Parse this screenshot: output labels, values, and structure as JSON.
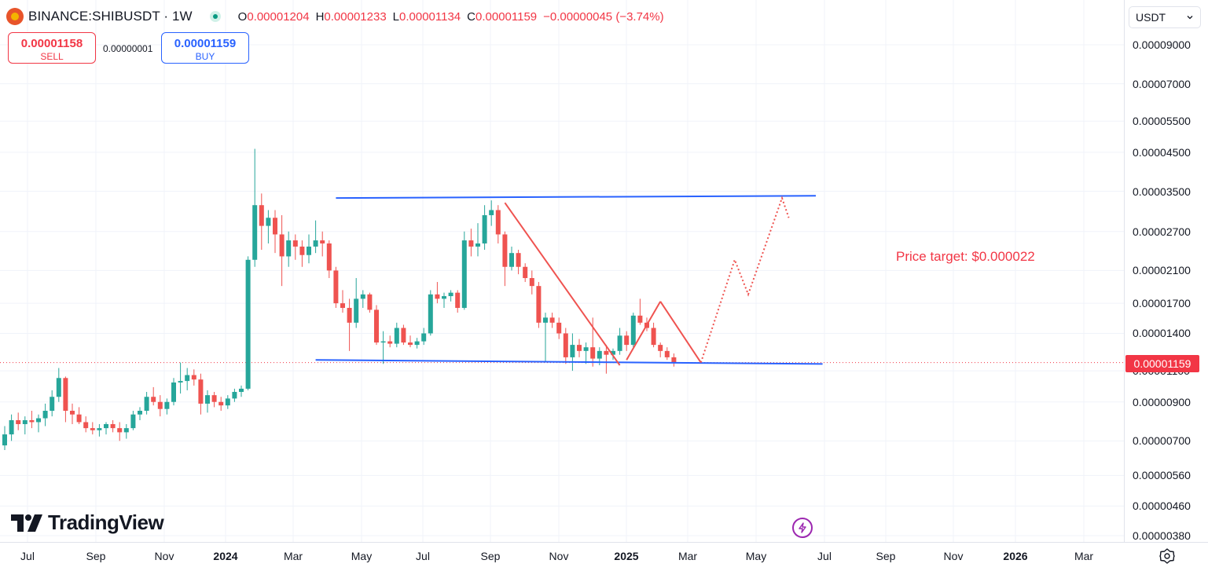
{
  "header": {
    "symbol": "BINANCE:SHIBUSDT · 1W",
    "ohlc": [
      {
        "key": "O",
        "value": "0.00001204"
      },
      {
        "key": "H",
        "value": "0.00001233"
      },
      {
        "key": "L",
        "value": "0.00001134"
      },
      {
        "key": "C",
        "value": "0.00001159"
      }
    ],
    "change": "−0.00000045 (−3.74%)"
  },
  "trade": {
    "sell_price": "0.00001158",
    "sell_label": "SELL",
    "spread": "0.00000001",
    "buy_price": "0.00001159",
    "buy_label": "BUY"
  },
  "price_axis": {
    "currency": "USDT",
    "ticks": [
      "0.00009000",
      "0.00007000",
      "0.00005500",
      "0.00004500",
      "0.00003500",
      "0.00002700",
      "0.00002100",
      "0.00001700",
      "0.00001400",
      "0.00001100",
      "0.00000900",
      "0.00000700",
      "0.00000560",
      "0.00000460",
      "0.00000380"
    ],
    "last_price": "0.00001159"
  },
  "time_axis": {
    "ticks": [
      {
        "label": "Jul",
        "bold": false
      },
      {
        "label": "Sep",
        "bold": false
      },
      {
        "label": "Nov",
        "bold": false
      },
      {
        "label": "2024",
        "bold": true
      },
      {
        "label": "Mar",
        "bold": false
      },
      {
        "label": "May",
        "bold": false
      },
      {
        "label": "Jul",
        "bold": false
      },
      {
        "label": "Sep",
        "bold": false
      },
      {
        "label": "Nov",
        "bold": false
      },
      {
        "label": "2025",
        "bold": true
      },
      {
        "label": "Mar",
        "bold": false
      },
      {
        "label": "May",
        "bold": false
      },
      {
        "label": "Jul",
        "bold": false
      },
      {
        "label": "Sep",
        "bold": false
      },
      {
        "label": "Nov",
        "bold": false
      },
      {
        "label": "2026",
        "bold": true
      },
      {
        "label": "Mar",
        "bold": false
      }
    ]
  },
  "annotation": {
    "text": "Price target: $0.000022"
  },
  "branding": {
    "name": "TradingView"
  },
  "colors": {
    "up": "#26a69a",
    "down": "#ef5350",
    "trendline": "#2962ff",
    "annotation": "#f23645"
  },
  "icons": {
    "settings": "gear-icon",
    "bolt": "lightning-icon",
    "status": "status-dot-icon"
  },
  "chart_data": {
    "type": "candlestick",
    "interval": "1W",
    "scale": "log",
    "ylim": [
      3.6e-06,
      0.00011
    ],
    "candles": [
      {
        "o": 6.8e-06,
        "h": 7.7e-06,
        "l": 6.6e-06,
        "c": 7.3e-06
      },
      {
        "o": 7.3e-06,
        "h": 8.3e-06,
        "l": 7e-06,
        "c": 8e-06
      },
      {
        "o": 8e-06,
        "h": 8.4e-06,
        "l": 7.5e-06,
        "c": 7.8e-06
      },
      {
        "o": 7.8e-06,
        "h": 8.2e-06,
        "l": 7.3e-06,
        "c": 8e-06
      },
      {
        "o": 8e-06,
        "h": 8.5e-06,
        "l": 7.6e-06,
        "c": 7.9e-06
      },
      {
        "o": 7.9e-06,
        "h": 8.3e-06,
        "l": 7.4e-06,
        "c": 8.1e-06
      },
      {
        "o": 8.1e-06,
        "h": 8.9e-06,
        "l": 7.7e-06,
        "c": 8.5e-06
      },
      {
        "o": 8.5e-06,
        "h": 9.7e-06,
        "l": 8.2e-06,
        "c": 9.3e-06
      },
      {
        "o": 9.3e-06,
        "h": 1.12e-05,
        "l": 9e-06,
        "c": 1.05e-05
      },
      {
        "o": 1.05e-05,
        "h": 1.06e-05,
        "l": 7.9e-06,
        "c": 8.5e-06
      },
      {
        "o": 8.5e-06,
        "h": 8.9e-06,
        "l": 7.8e-06,
        "c": 8.3e-06
      },
      {
        "o": 8.3e-06,
        "h": 8.7e-06,
        "l": 7.8e-06,
        "c": 7.9e-06
      },
      {
        "o": 7.9e-06,
        "h": 8.2e-06,
        "l": 7.4e-06,
        "c": 7.6e-06
      },
      {
        "o": 7.6e-06,
        "h": 7.9e-06,
        "l": 7.3e-06,
        "c": 7.5e-06
      },
      {
        "o": 7.5e-06,
        "h": 7.8e-06,
        "l": 7.2e-06,
        "c": 7.6e-06
      },
      {
        "o": 7.6e-06,
        "h": 7.9e-06,
        "l": 7.3e-06,
        "c": 7.8e-06
      },
      {
        "o": 7.8e-06,
        "h": 8e-06,
        "l": 7.4e-06,
        "c": 7.6e-06
      },
      {
        "o": 7.6e-06,
        "h": 7.9e-06,
        "l": 7e-06,
        "c": 7.4e-06
      },
      {
        "o": 7.4e-06,
        "h": 7.8e-06,
        "l": 7.1e-06,
        "c": 7.6e-06
      },
      {
        "o": 7.6e-06,
        "h": 8.5e-06,
        "l": 7.5e-06,
        "c": 8.3e-06
      },
      {
        "o": 8.3e-06,
        "h": 8.7e-06,
        "l": 8e-06,
        "c": 8.5e-06
      },
      {
        "o": 8.5e-06,
        "h": 9.6e-06,
        "l": 8.3e-06,
        "c": 9.3e-06
      },
      {
        "o": 9.3e-06,
        "h": 9.9e-06,
        "l": 8.8e-06,
        "c": 9e-06
      },
      {
        "o": 9e-06,
        "h": 9.4e-06,
        "l": 8.2e-06,
        "c": 8.6e-06
      },
      {
        "o": 8.6e-06,
        "h": 9.2e-06,
        "l": 8.3e-06,
        "c": 9e-06
      },
      {
        "o": 9e-06,
        "h": 1.05e-05,
        "l": 8.8e-06,
        "c": 1.02e-05
      },
      {
        "o": 1.02e-05,
        "h": 1.16e-05,
        "l": 9.5e-06,
        "c": 1.03e-05
      },
      {
        "o": 1.03e-05,
        "h": 1.12e-05,
        "l": 9.7e-06,
        "c": 1.07e-05
      },
      {
        "o": 1.07e-05,
        "h": 1.11e-05,
        "l": 1e-05,
        "c": 1.04e-05
      },
      {
        "o": 1.04e-05,
        "h": 1.08e-05,
        "l": 8.3e-06,
        "c": 8.9e-06
      },
      {
        "o": 8.9e-06,
        "h": 9.7e-06,
        "l": 8.4e-06,
        "c": 9.4e-06
      },
      {
        "o": 9.4e-06,
        "h": 9.6e-06,
        "l": 8.7e-06,
        "c": 9e-06
      },
      {
        "o": 9e-06,
        "h": 9.3e-06,
        "l": 8.5e-06,
        "c": 8.8e-06
      },
      {
        "o": 8.8e-06,
        "h": 9.4e-06,
        "l": 8.6e-06,
        "c": 9.2e-06
      },
      {
        "o": 9.2e-06,
        "h": 9.8e-06,
        "l": 9e-06,
        "c": 9.6e-06
      },
      {
        "o": 9.6e-06,
        "h": 1e-05,
        "l": 9.3e-06,
        "c": 9.8e-06
      },
      {
        "o": 9.8e-06,
        "h": 2.3e-05,
        "l": 9.7e-06,
        "c": 2.25e-05
      },
      {
        "o": 2.25e-05,
        "h": 4.6e-05,
        "l": 2.15e-05,
        "c": 3.2e-05
      },
      {
        "o": 3.2e-05,
        "h": 3.45e-05,
        "l": 2.4e-05,
        "c": 2.8e-05
      },
      {
        "o": 2.8e-05,
        "h": 3.1e-05,
        "l": 2.5e-05,
        "c": 2.95e-05
      },
      {
        "o": 2.95e-05,
        "h": 3.1e-05,
        "l": 2.35e-05,
        "c": 2.65e-05
      },
      {
        "o": 2.65e-05,
        "h": 3e-05,
        "l": 1.9e-05,
        "c": 2.3e-05
      },
      {
        "o": 2.3e-05,
        "h": 2.7e-05,
        "l": 2.15e-05,
        "c": 2.55e-05
      },
      {
        "o": 2.55e-05,
        "h": 2.65e-05,
        "l": 2.25e-05,
        "c": 2.45e-05
      },
      {
        "o": 2.45e-05,
        "h": 2.55e-05,
        "l": 2.15e-05,
        "c": 2.32e-05
      },
      {
        "o": 2.32e-05,
        "h": 2.65e-05,
        "l": 2.2e-05,
        "c": 2.45e-05
      },
      {
        "o": 2.45e-05,
        "h": 2.9e-05,
        "l": 2.35e-05,
        "c": 2.55e-05
      },
      {
        "o": 2.55e-05,
        "h": 2.7e-05,
        "l": 2.3e-05,
        "c": 2.5e-05
      },
      {
        "o": 2.5e-05,
        "h": 2.55e-05,
        "l": 2e-05,
        "c": 2.1e-05
      },
      {
        "o": 2.1e-05,
        "h": 2.15e-05,
        "l": 1.65e-05,
        "c": 1.7e-05
      },
      {
        "o": 1.7e-05,
        "h": 1.85e-05,
        "l": 1.6e-05,
        "c": 1.65e-05
      },
      {
        "o": 1.65e-05,
        "h": 1.75e-05,
        "l": 1.25e-05,
        "c": 1.5e-05
      },
      {
        "o": 1.5e-05,
        "h": 2e-05,
        "l": 1.45e-05,
        "c": 1.75e-05
      },
      {
        "o": 1.75e-05,
        "h": 1.85e-05,
        "l": 1.65e-05,
        "c": 1.8e-05
      },
      {
        "o": 1.8e-05,
        "h": 1.82e-05,
        "l": 1.6e-05,
        "c": 1.63e-05
      },
      {
        "o": 1.63e-05,
        "h": 1.68e-05,
        "l": 1.3e-05,
        "c": 1.32e-05
      },
      {
        "o": 1.32e-05,
        "h": 1.42e-05,
        "l": 1.15e-05,
        "c": 1.33e-05
      },
      {
        "o": 1.33e-05,
        "h": 1.38e-05,
        "l": 1.28e-05,
        "c": 1.31e-05
      },
      {
        "o": 1.31e-05,
        "h": 1.5e-05,
        "l": 1.28e-05,
        "c": 1.45e-05
      },
      {
        "o": 1.45e-05,
        "h": 1.48e-05,
        "l": 1.3e-05,
        "c": 1.32e-05
      },
      {
        "o": 1.32e-05,
        "h": 1.38e-05,
        "l": 1.28e-05,
        "c": 1.3e-05
      },
      {
        "o": 1.3e-05,
        "h": 1.36e-05,
        "l": 1.27e-05,
        "c": 1.33e-05
      },
      {
        "o": 1.33e-05,
        "h": 1.45e-05,
        "l": 1.3e-05,
        "c": 1.4e-05
      },
      {
        "o": 1.4e-05,
        "h": 1.85e-05,
        "l": 1.38e-05,
        "c": 1.8e-05
      },
      {
        "o": 1.8e-05,
        "h": 1.95e-05,
        "l": 1.7e-05,
        "c": 1.75e-05
      },
      {
        "o": 1.75e-05,
        "h": 1.82e-05,
        "l": 1.65e-05,
        "c": 1.78e-05
      },
      {
        "o": 1.78e-05,
        "h": 1.85e-05,
        "l": 1.72e-05,
        "c": 1.82e-05
      },
      {
        "o": 1.82e-05,
        "h": 1.85e-05,
        "l": 1.6e-05,
        "c": 1.65e-05
      },
      {
        "o": 1.65e-05,
        "h": 2.7e-05,
        "l": 1.63e-05,
        "c": 2.55e-05
      },
      {
        "o": 2.55e-05,
        "h": 2.75e-05,
        "l": 2.3e-05,
        "c": 2.45e-05
      },
      {
        "o": 2.45e-05,
        "h": 2.85e-05,
        "l": 2.3e-05,
        "c": 2.5e-05
      },
      {
        "o": 2.5e-05,
        "h": 3.2e-05,
        "l": 2.4e-05,
        "c": 3e-05
      },
      {
        "o": 3e-05,
        "h": 3.3e-05,
        "l": 2.8e-05,
        "c": 3.1e-05
      },
      {
        "o": 3.1e-05,
        "h": 3.2e-05,
        "l": 2.5e-05,
        "c": 2.65e-05
      },
      {
        "o": 2.65e-05,
        "h": 2.7e-05,
        "l": 1.9e-05,
        "c": 2.15e-05
      },
      {
        "o": 2.15e-05,
        "h": 2.45e-05,
        "l": 2.1e-05,
        "c": 2.35e-05
      },
      {
        "o": 2.35e-05,
        "h": 2.4e-05,
        "l": 2.05e-05,
        "c": 2.15e-05
      },
      {
        "o": 2.15e-05,
        "h": 2.2e-05,
        "l": 1.95e-05,
        "c": 2e-05
      },
      {
        "o": 2e-05,
        "h": 2.1e-05,
        "l": 1.8e-05,
        "c": 1.9e-05
      },
      {
        "o": 1.9e-05,
        "h": 1.95e-05,
        "l": 1.45e-05,
        "c": 1.5e-05
      },
      {
        "o": 1.5e-05,
        "h": 1.6e-05,
        "l": 1.17e-05,
        "c": 1.55e-05
      },
      {
        "o": 1.55e-05,
        "h": 1.6e-05,
        "l": 1.45e-05,
        "c": 1.5e-05
      },
      {
        "o": 1.5e-05,
        "h": 1.55e-05,
        "l": 1.35e-05,
        "c": 1.4e-05
      },
      {
        "o": 1.4e-05,
        "h": 1.45e-05,
        "l": 1.15e-05,
        "c": 1.2e-05
      },
      {
        "o": 1.2e-05,
        "h": 1.4e-05,
        "l": 1.1e-05,
        "c": 1.3e-05
      },
      {
        "o": 1.3e-05,
        "h": 1.35e-05,
        "l": 1.2e-05,
        "c": 1.25e-05
      },
      {
        "o": 1.25e-05,
        "h": 1.32e-05,
        "l": 1.15e-05,
        "c": 1.28e-05
      },
      {
        "o": 1.28e-05,
        "h": 1.55e-05,
        "l": 1.13e-05,
        "c": 1.19e-05
      },
      {
        "o": 1.19e-05,
        "h": 1.28e-05,
        "l": 1.14e-05,
        "c": 1.25e-05
      },
      {
        "o": 1.25e-05,
        "h": 1.3e-05,
        "l": 1.08e-05,
        "c": 1.22e-05
      },
      {
        "o": 1.22e-05,
        "h": 1.27e-05,
        "l": 1.18e-05,
        "c": 1.25e-05
      },
      {
        "o": 1.25e-05,
        "h": 1.45e-05,
        "l": 1.22e-05,
        "c": 1.38e-05
      },
      {
        "o": 1.38e-05,
        "h": 1.42e-05,
        "l": 1.25e-05,
        "c": 1.3e-05
      },
      {
        "o": 1.3e-05,
        "h": 1.6e-05,
        "l": 1.28e-05,
        "c": 1.57e-05
      },
      {
        "o": 1.57e-05,
        "h": 1.75e-05,
        "l": 1.48e-05,
        "c": 1.5e-05
      },
      {
        "o": 1.5e-05,
        "h": 1.55e-05,
        "l": 1.42e-05,
        "c": 1.45e-05
      },
      {
        "o": 1.45e-05,
        "h": 1.5e-05,
        "l": 1.28e-05,
        "c": 1.3e-05
      },
      {
        "o": 1.3e-05,
        "h": 1.32e-05,
        "l": 1.2e-05,
        "c": 1.25e-05
      },
      {
        "o": 1.25e-05,
        "h": 1.28e-05,
        "l": 1.18e-05,
        "c": 1.2e-05
      },
      {
        "o": 1.2e-05,
        "h": 1.23e-05,
        "l": 1.13e-05,
        "c": 1.16e-05
      }
    ],
    "drawings": {
      "resistance": {
        "from": {
          "candle": 49,
          "price": 3.35e-05
        },
        "to": {
          "candle": 120,
          "price": 3.4e-05
        }
      },
      "support": {
        "from": {
          "candle": 46,
          "price": 1.18e-05
        },
        "to": {
          "candle": 121,
          "price": 1.15e-05
        }
      },
      "down_leg_1": {
        "from": {
          "candle": 74,
          "price": 3.25e-05
        },
        "to": {
          "candle": 91,
          "price": 1.14e-05
        }
      },
      "up_leg": {
        "from": {
          "candle": 92,
          "price": 1.18e-05
        },
        "to": {
          "candle": 97,
          "price": 1.72e-05
        }
      },
      "down_leg_2": {
        "from": {
          "candle": 97,
          "price": 1.72e-05
        },
        "to": {
          "candle": 103,
          "price": 1.16e-05
        }
      },
      "projection": [
        {
          "candle": 103,
          "price": 1.16e-05
        },
        {
          "candle": 108,
          "price": 2.25e-05
        },
        {
          "candle": 110,
          "price": 1.8e-05
        },
        {
          "candle": 115,
          "price": 3.35e-05
        },
        {
          "candle": 116,
          "price": 2.95e-05
        }
      ]
    }
  }
}
